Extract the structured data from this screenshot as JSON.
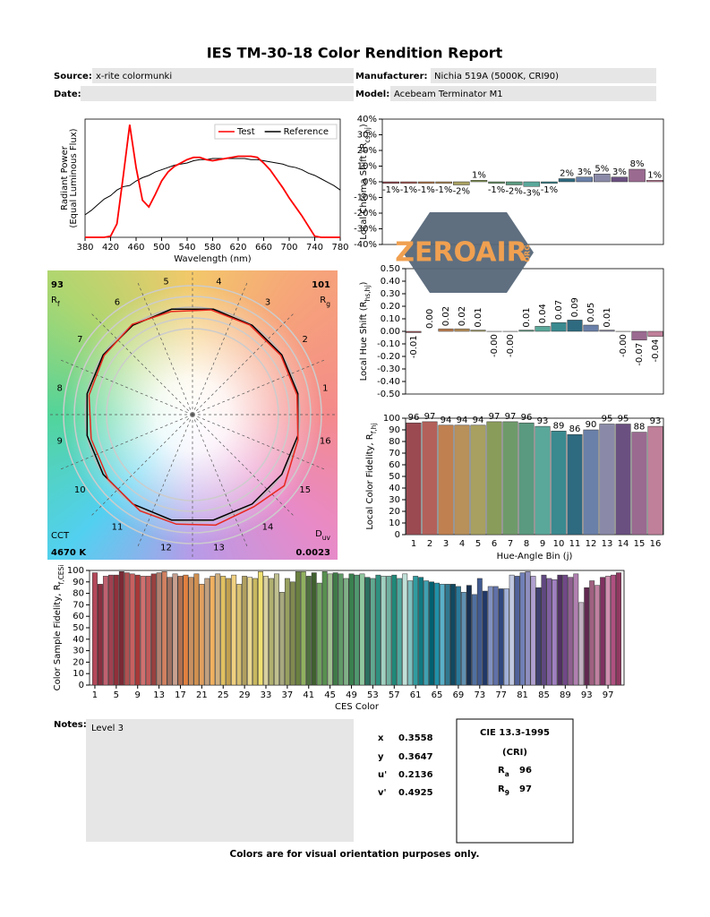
{
  "header": {
    "title": "IES TM-30-18 Color Rendition Report",
    "fields": [
      {
        "label": "Source:",
        "value": "x-rite colormunki"
      },
      {
        "label": "Manufacturer:",
        "value": "Nichia 519A (5000K, CRI90)"
      },
      {
        "label": "Date:"
      },
      {
        "label": "Model:",
        "value": "Acebeam Terminator M1"
      }
    ]
  },
  "chart_data": [
    {
      "type": "line",
      "xlabel": "Wavelength (nm)",
      "ylabel": "Radiant Power",
      "ylabel2": "(Equal Luminous Flux)",
      "legend": "upper right",
      "x": [
        380,
        390,
        400,
        410,
        420,
        430,
        440,
        450,
        460,
        470,
        480,
        490,
        500,
        510,
        520,
        530,
        540,
        550,
        560,
        570,
        580,
        590,
        600,
        610,
        620,
        630,
        640,
        650,
        660,
        670,
        680,
        690,
        700,
        710,
        720,
        730,
        740,
        750,
        760,
        770,
        780
      ],
      "series": [
        {
          "name": "Test",
          "color": "#ff0000",
          "values": [
            0,
            0,
            0,
            0,
            0.01,
            0.12,
            0.55,
            1.0,
            0.62,
            0.33,
            0.27,
            0.38,
            0.5,
            0.58,
            0.63,
            0.66,
            0.69,
            0.71,
            0.71,
            0.69,
            0.68,
            0.69,
            0.7,
            0.71,
            0.72,
            0.72,
            0.72,
            0.71,
            0.66,
            0.6,
            0.52,
            0.44,
            0.35,
            0.27,
            0.19,
            0.1,
            0.01,
            0,
            0,
            0,
            0
          ]
        },
        {
          "name": "Reference",
          "color": "#000000",
          "values": [
            0.2,
            0.24,
            0.29,
            0.34,
            0.37,
            0.42,
            0.45,
            0.46,
            0.5,
            0.53,
            0.55,
            0.58,
            0.6,
            0.62,
            0.64,
            0.65,
            0.66,
            0.68,
            0.69,
            0.69,
            0.7,
            0.7,
            0.7,
            0.7,
            0.7,
            0.7,
            0.69,
            0.69,
            0.68,
            0.67,
            0.66,
            0.65,
            0.63,
            0.62,
            0.6,
            0.57,
            0.55,
            0.52,
            0.49,
            0.46,
            0.42
          ]
        }
      ],
      "xlim": [
        380,
        780
      ],
      "xticks": [
        380,
        420,
        460,
        500,
        540,
        580,
        620,
        660,
        700,
        740,
        780
      ],
      "ylim": [
        0,
        1.05
      ]
    },
    {
      "type": "vector",
      "rf": 93,
      "rf_label": [
        "R",
        "f"
      ],
      "rg": 101,
      "rg_label": [
        "R",
        "g"
      ],
      "cct_label": "CCT",
      "cct": "4670 K",
      "duv_label": [
        "D",
        "uv"
      ],
      "duv": 0.0023,
      "bin_labels": [
        1,
        2,
        3,
        4,
        5,
        6,
        7,
        8,
        9,
        10,
        11,
        12,
        13,
        14,
        15,
        16
      ],
      "test_color": "#e8281e",
      "reference_color": "#000000"
    },
    {
      "type": "bar",
      "ylabel": [
        "Local Chroma Shift (R",
        "cs,hj",
        ")"
      ],
      "values": [
        -1,
        -1,
        -1,
        -1,
        -2,
        1,
        -1,
        -2,
        -3,
        -1,
        2,
        3,
        5,
        3,
        8,
        1
      ],
      "value_labels": [
        "-1%",
        "-1%",
        "-1%",
        "-1%",
        "-2%",
        "1%",
        "-1%",
        "-2%",
        "-3%",
        "-1%",
        "2%",
        "3%",
        "5%",
        "3%",
        "8%",
        "1%"
      ],
      "colors": [
        "#9b4a52",
        "#b3605a",
        "#c08050",
        "#b8905a",
        "#a8a060",
        "#8a9c5a",
        "#6e9a6a",
        "#5a9a80",
        "#5aa89a",
        "#3a8a90",
        "#2e6a80",
        "#6a80a8",
        "#8a8aa8",
        "#6a5080",
        "#9a6a90",
        "#c0809a"
      ],
      "ylim": [
        -40,
        40
      ],
      "yticks": [
        {
          "value": -40,
          "label": "-40%"
        },
        {
          "value": -30,
          "label": "-30%"
        },
        {
          "value": -20,
          "label": "-20%"
        },
        {
          "value": -10,
          "label": "-10%"
        },
        {
          "value": 0,
          "label": "0%"
        },
        {
          "value": 10,
          "label": "10%"
        },
        {
          "value": 20,
          "label": "20%"
        },
        {
          "value": 30,
          "label": "30%"
        },
        {
          "value": 40,
          "label": "40%"
        }
      ]
    },
    {
      "type": "bar",
      "ylabel": [
        "Local Hue Shift (R",
        "hs,hj",
        ")"
      ],
      "values": [
        -0.01,
        0,
        0.02,
        0.02,
        0.01,
        -0.001,
        -0.001,
        0.01,
        0.04,
        0.07,
        0.09,
        0.05,
        0.01,
        -0.001,
        -0.07,
        -0.04
      ],
      "value_labels": [
        "-0.01",
        "0.00",
        "0.02",
        "0.02",
        "0.01",
        "-0.00",
        "-0.00",
        "0.01",
        "0.04",
        "0.07",
        "0.09",
        "0.05",
        "0.01",
        "-0.00",
        "-0.07",
        "-0.04"
      ],
      "label_rotation": 90,
      "colors": [
        "#9b4a52",
        "#b3605a",
        "#c08050",
        "#b8905a",
        "#a8a060",
        "#8a9c5a",
        "#6e9a6a",
        "#5a9a80",
        "#5aa89a",
        "#3a8a90",
        "#2e6a80",
        "#6a80a8",
        "#8a8aa8",
        "#6a5080",
        "#9a6a90",
        "#c0809a"
      ],
      "ylim": [
        -0.5,
        0.5
      ],
      "yticks": [
        {
          "value": -0.5,
          "label": "-0.50"
        },
        {
          "value": -0.4,
          "label": "-0.40"
        },
        {
          "value": -0.3,
          "label": "-0.30"
        },
        {
          "value": -0.2,
          "label": "-0.20"
        },
        {
          "value": -0.1,
          "label": "-0.10"
        },
        {
          "value": 0,
          "label": "0.00"
        },
        {
          "value": 0.1,
          "label": "0.10"
        },
        {
          "value": 0.2,
          "label": "0.20"
        },
        {
          "value": 0.3,
          "label": "0.30"
        },
        {
          "value": 0.4,
          "label": "0.40"
        },
        {
          "value": 0.5,
          "label": "0.50"
        }
      ]
    },
    {
      "type": "bar",
      "ylabel": [
        "Local Color Fidelity, R",
        "f,hj"
      ],
      "xlabel": "Hue-Angle Bin (j)",
      "data_labels": true,
      "categories": [
        1,
        2,
        3,
        4,
        5,
        6,
        7,
        8,
        9,
        10,
        11,
        12,
        13,
        14,
        15,
        16
      ],
      "values": [
        96,
        97,
        94,
        94,
        94,
        97,
        97,
        96,
        93,
        89,
        86,
        90,
        95,
        95,
        88,
        93
      ],
      "colors": [
        "#9b4a52",
        "#b3605a",
        "#c08050",
        "#b8905a",
        "#a8a060",
        "#8a9c5a",
        "#6e9a6a",
        "#5a9a80",
        "#5aa89a",
        "#3a8a90",
        "#2e6a80",
        "#6a80a8",
        "#8a8aa8",
        "#6a5080",
        "#9a6a90",
        "#c0809a"
      ],
      "ylim": [
        0,
        100
      ],
      "yticks": [
        0,
        10,
        20,
        30,
        40,
        50,
        60,
        70,
        80,
        90,
        100
      ]
    },
    {
      "type": "bar",
      "ylabel": [
        "Color Sample Fidelity, R",
        "f,CESi"
      ],
      "xlabel": "CES Color",
      "x": [
        1,
        2,
        3,
        4,
        5,
        6,
        7,
        8,
        9,
        10,
        11,
        12,
        13,
        14,
        15,
        16,
        17,
        18,
        19,
        20,
        21,
        22,
        23,
        24,
        25,
        26,
        27,
        28,
        29,
        30,
        31,
        32,
        33,
        34,
        35,
        36,
        37,
        38,
        39,
        40,
        41,
        42,
        43,
        44,
        45,
        46,
        47,
        48,
        49,
        50,
        51,
        52,
        53,
        54,
        55,
        56,
        57,
        58,
        59,
        60,
        61,
        62,
        63,
        64,
        65,
        66,
        67,
        68,
        69,
        70,
        71,
        72,
        73,
        74,
        75,
        76,
        77,
        78,
        79,
        80,
        81,
        82,
        83,
        84,
        85,
        86,
        87,
        88,
        89,
        90,
        91,
        92,
        93,
        94,
        95,
        96,
        97,
        98,
        99
      ],
      "values": [
        98,
        88,
        95,
        96,
        96,
        99,
        98,
        97,
        96,
        95,
        95,
        97,
        98,
        99,
        94,
        97,
        95,
        96,
        94,
        97,
        88,
        93,
        95,
        97,
        95,
        93,
        96,
        88,
        95,
        94,
        93,
        99,
        95,
        93,
        97,
        81,
        93,
        90,
        99,
        99,
        95,
        98,
        89,
        99,
        97,
        98,
        97,
        93,
        97,
        96,
        97,
        94,
        93,
        96,
        95,
        95,
        96,
        93,
        97,
        91,
        95,
        94,
        91,
        90,
        89,
        88,
        88,
        88,
        86,
        81,
        87,
        79,
        93,
        82,
        86,
        86,
        84,
        84,
        96,
        95,
        98,
        99,
        95,
        85,
        96,
        93,
        92,
        96,
        96,
        94,
        97,
        72,
        85,
        91,
        87,
        94,
        95,
        96,
        98
      ],
      "colors": [
        "#b4485a",
        "#8a3040",
        "#c06070",
        "#a04050",
        "#90303a",
        "#7a2a35",
        "#b05050",
        "#c86060",
        "#a83838",
        "#d07070",
        "#c05a5a",
        "#984040",
        "#b08070",
        "#d08060",
        "#a07060",
        "#c8a090",
        "#b07050",
        "#e08040",
        "#c89060",
        "#d09050",
        "#e0a060",
        "#c0a080",
        "#f0b060",
        "#d0b080",
        "#e0c060",
        "#c0a050",
        "#f0d080",
        "#d8c070",
        "#b0a060",
        "#e8d890",
        "#c8b860",
        "#f0e070",
        "#d8d0a0",
        "#b0b070",
        "#c0c090",
        "#a8a880",
        "#98a060",
        "#808a50",
        "#6a8040",
        "#90b060",
        "#507040",
        "#406030",
        "#70a060",
        "#589050",
        "#a0c090",
        "#407a48",
        "#609a68",
        "#80b088",
        "#3a8050",
        "#509870",
        "#90c8a0",
        "#2a7060",
        "#60a890",
        "#309080",
        "#a0d0c0",
        "#70b0a0",
        "#208878",
        "#50a8a0",
        "#c0e0d8",
        "#80c0c0",
        "#309ca0",
        "#107880",
        "#40a0b0",
        "#006070",
        "#2090a8",
        "#5ab0c8",
        "#307890",
        "#104860",
        "#2a7a9a",
        "#6090b0",
        "#183050",
        "#5070a0",
        "#405a90",
        "#203868",
        "#8090c0",
        "#6070a8",
        "#304880",
        "#a0b0d8",
        "#c0c8e0",
        "#506098",
        "#7080b8",
        "#9090c0",
        "#b0a0d0",
        "#404070",
        "#604880",
        "#8060a0",
        "#a080c0",
        "#503060",
        "#704888",
        "#906090",
        "#b080b0",
        "#c0b0c0",
        "#602850",
        "#a06080",
        "#c080a0",
        "#803060",
        "#d090b0",
        "#b05080",
        "#903860"
      ],
      "xlim": [
        0,
        100
      ],
      "xticks": [
        1,
        5,
        9,
        13,
        17,
        21,
        25,
        29,
        33,
        37,
        41,
        45,
        49,
        53,
        57,
        61,
        65,
        69,
        73,
        77,
        81,
        85,
        89,
        93,
        97
      ],
      "ylim": [
        0,
        100
      ],
      "yticks": [
        0,
        10,
        20,
        30,
        40,
        50,
        60,
        70,
        80,
        90,
        100
      ]
    }
  ],
  "notes": {
    "label": "Notes:",
    "text": "Level 3"
  },
  "chromaticity": [
    {
      "label": "x",
      "value": 0.3558
    },
    {
      "label": "y",
      "value": 0.3647
    },
    {
      "label": "u'",
      "value": 0.2136
    },
    {
      "label": "v'",
      "value": 0.4925
    }
  ],
  "cri": {
    "title": "CIE 13.3-1995",
    "subtitle": "(CRI)",
    "indices": [
      {
        "symbol": "R",
        "sub": "a",
        "value": 96
      },
      {
        "symbol": "R",
        "sub": "9",
        "value": 97
      }
    ]
  },
  "footer": "Colors are for visual orientation purposes only.",
  "watermark": {
    "text": "ZEROAIR",
    "suffix": "ORG"
  }
}
